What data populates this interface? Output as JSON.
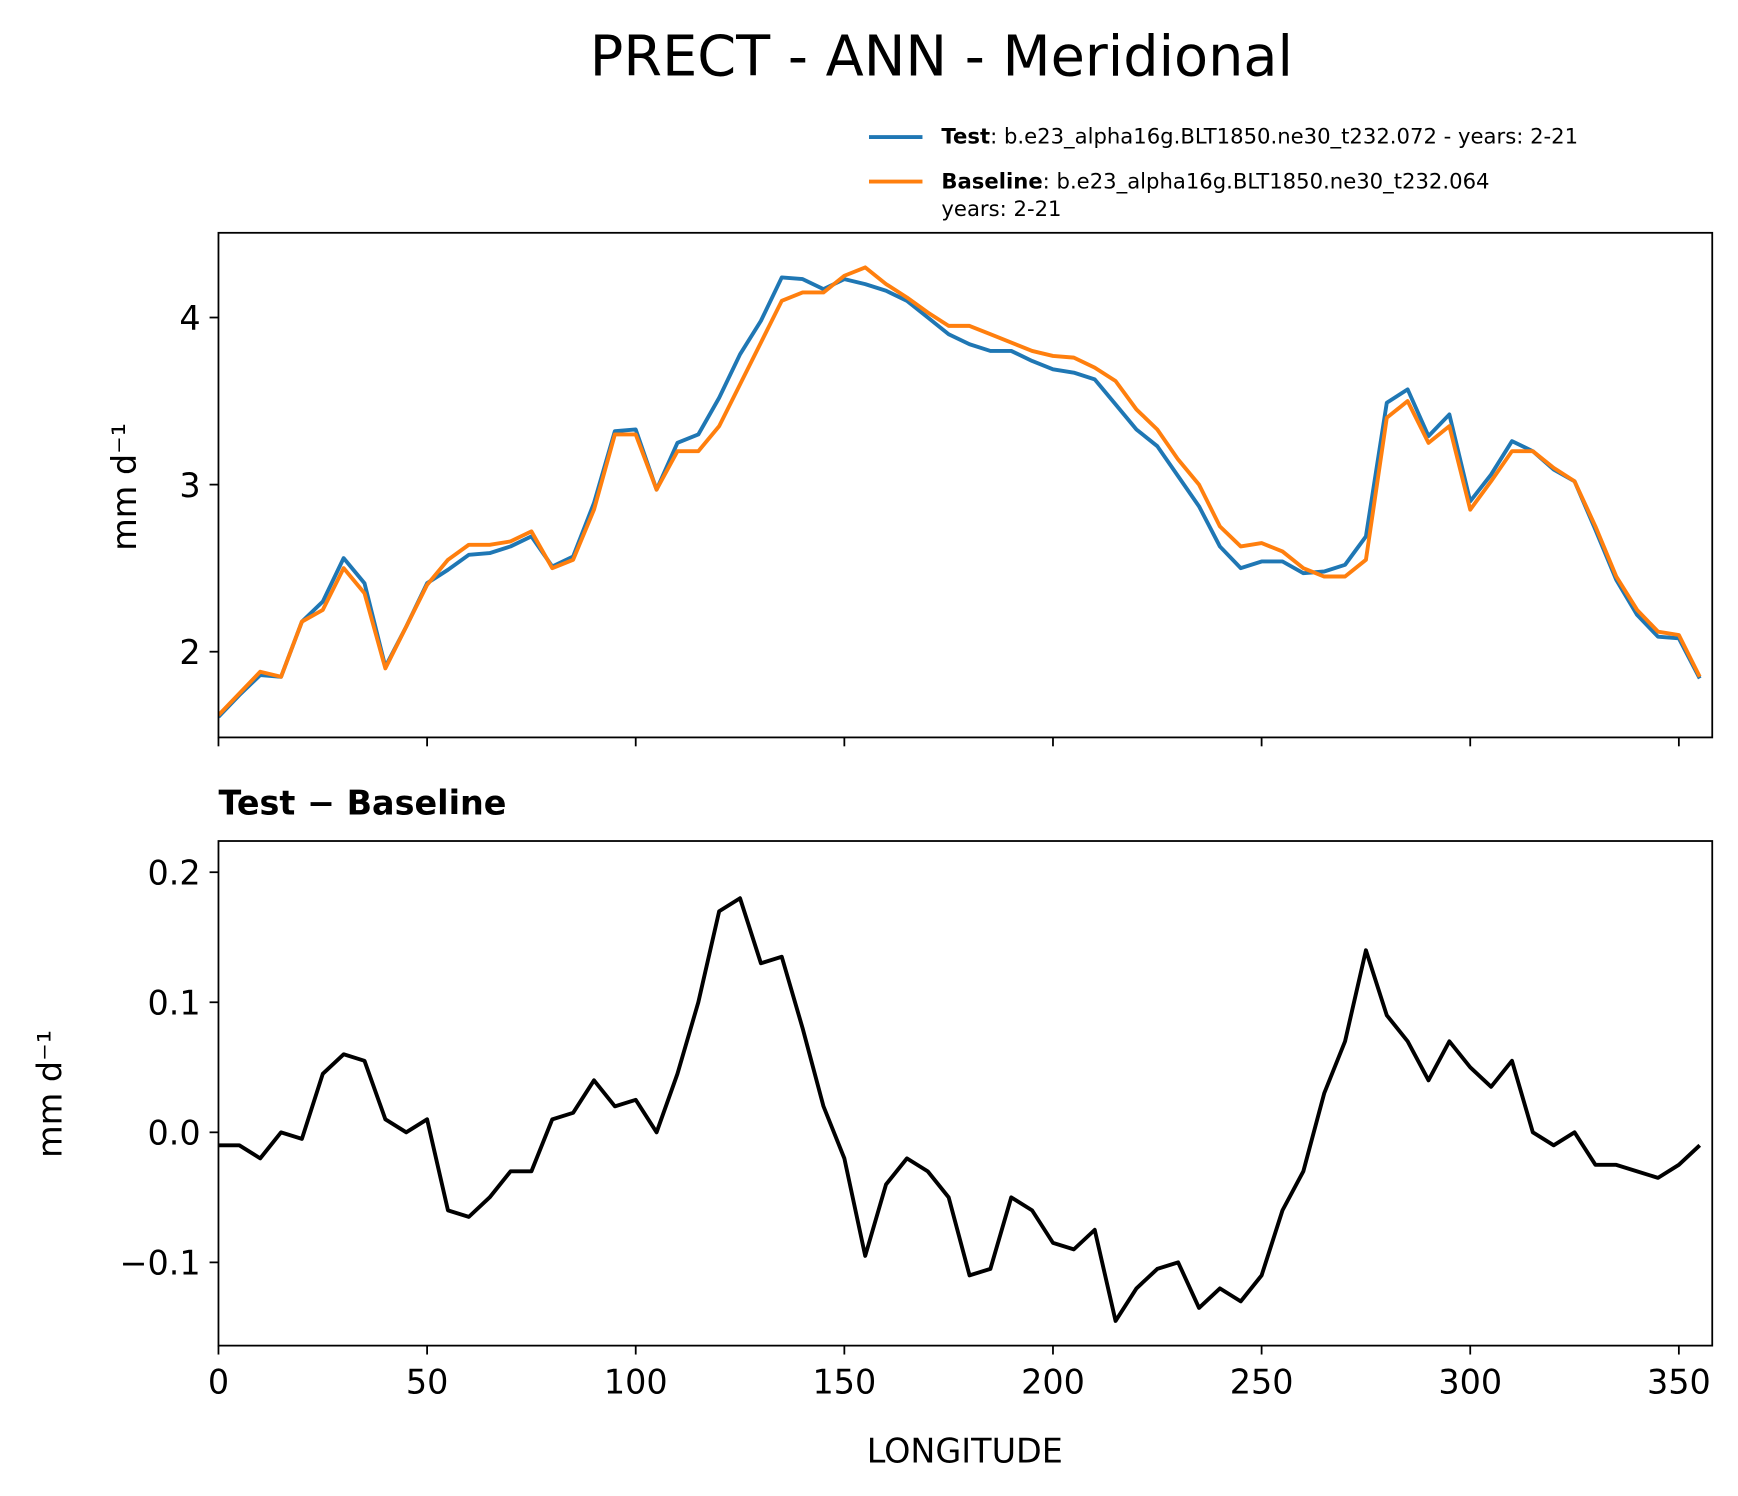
{
  "chart_data": [
    {
      "type": "line",
      "title": "PRECT - ANN - Meridional",
      "ylabel": "mm d⁻¹",
      "x": [
        0,
        5,
        10,
        15,
        20,
        25,
        30,
        35,
        40,
        45,
        50,
        55,
        60,
        65,
        70,
        75,
        80,
        85,
        90,
        95,
        100,
        105,
        110,
        115,
        120,
        125,
        130,
        135,
        140,
        145,
        150,
        155,
        160,
        165,
        170,
        175,
        180,
        185,
        190,
        195,
        200,
        205,
        210,
        215,
        220,
        225,
        230,
        235,
        240,
        245,
        250,
        255,
        260,
        265,
        270,
        275,
        280,
        285,
        290,
        295,
        300,
        305,
        310,
        315,
        320,
        325,
        330,
        335,
        340,
        345,
        350,
        355
      ],
      "series": [
        {
          "name": "Test",
          "description": [
            ": b.e23_alpha16g.BLT1850.ne30_t232.072 - years: 2-21"
          ],
          "color": "#1f77b4",
          "values": [
            1.61,
            1.74,
            1.86,
            1.85,
            2.18,
            2.3,
            2.56,
            2.41,
            1.91,
            2.15,
            2.41,
            2.49,
            2.58,
            2.59,
            2.63,
            2.69,
            2.51,
            2.57,
            2.89,
            3.32,
            3.33,
            2.97,
            3.25,
            3.3,
            3.52,
            3.78,
            3.98,
            4.24,
            4.23,
            4.17,
            4.23,
            4.2,
            4.16,
            4.1,
            4.0,
            3.9,
            3.84,
            3.8,
            3.8,
            3.74,
            3.69,
            3.67,
            3.63,
            3.48,
            3.33,
            3.23,
            3.05,
            2.87,
            2.63,
            2.5,
            2.54,
            2.54,
            2.47,
            2.48,
            2.52,
            2.69,
            3.49,
            3.57,
            3.29,
            3.42,
            2.9,
            3.06,
            3.26,
            3.2,
            3.09,
            3.02,
            2.73,
            2.43,
            2.22,
            2.09,
            2.08,
            1.84
          ]
        },
        {
          "name": "Baseline",
          "description": [
            ": b.e23_alpha16g.BLT1850.ne30_t232.064",
            "years: 2-21"
          ],
          "color": "#ff7f0e",
          "values": [
            1.62,
            1.75,
            1.88,
            1.85,
            2.18,
            2.25,
            2.5,
            2.35,
            1.9,
            2.15,
            2.4,
            2.55,
            2.64,
            2.64,
            2.66,
            2.72,
            2.5,
            2.55,
            2.85,
            3.3,
            3.3,
            2.97,
            3.2,
            3.2,
            3.35,
            3.6,
            3.85,
            4.1,
            4.15,
            4.15,
            4.25,
            4.3,
            4.2,
            4.12,
            4.03,
            3.95,
            3.95,
            3.9,
            3.85,
            3.8,
            3.77,
            3.76,
            3.7,
            3.62,
            3.45,
            3.33,
            3.15,
            3.0,
            2.75,
            2.63,
            2.65,
            2.6,
            2.5,
            2.45,
            2.45,
            2.55,
            3.4,
            3.5,
            3.25,
            3.35,
            2.85,
            3.02,
            3.2,
            3.2,
            3.1,
            3.02,
            2.75,
            2.45,
            2.25,
            2.12,
            2.1,
            1.85
          ]
        }
      ],
      "xlim": [
        0,
        358
      ],
      "xticks": [
        0,
        50,
        100,
        150,
        200,
        250,
        300,
        350
      ],
      "ylim": [
        1.487,
        4.507
      ],
      "yticks": [
        2,
        3,
        4
      ]
    },
    {
      "type": "line",
      "title": "Test − Baseline",
      "ylabel": "mm d⁻¹",
      "xlabel": "LONGITUDE",
      "x": [
        0,
        5,
        10,
        15,
        20,
        25,
        30,
        35,
        40,
        45,
        50,
        55,
        60,
        65,
        70,
        75,
        80,
        85,
        90,
        95,
        100,
        105,
        110,
        115,
        120,
        125,
        130,
        135,
        140,
        145,
        150,
        155,
        160,
        165,
        170,
        175,
        180,
        185,
        190,
        195,
        200,
        205,
        210,
        215,
        220,
        225,
        230,
        235,
        240,
        245,
        250,
        255,
        260,
        265,
        270,
        275,
        280,
        285,
        290,
        295,
        300,
        305,
        310,
        315,
        320,
        325,
        330,
        335,
        340,
        345,
        350,
        355
      ],
      "series": [
        {
          "color": "#000000",
          "values": [
            -0.01,
            -0.01,
            -0.02,
            0.0,
            -0.005,
            0.045,
            0.06,
            0.055,
            0.01,
            0.0,
            0.01,
            -0.06,
            -0.065,
            -0.05,
            -0.03,
            -0.03,
            0.01,
            0.015,
            0.04,
            0.02,
            0.025,
            0.0,
            0.045,
            0.1,
            0.17,
            0.18,
            0.13,
            0.135,
            0.08,
            0.02,
            -0.02,
            -0.095,
            -0.04,
            -0.02,
            -0.03,
            -0.05,
            -0.11,
            -0.105,
            -0.05,
            -0.06,
            -0.085,
            -0.09,
            -0.075,
            -0.145,
            -0.12,
            -0.105,
            -0.1,
            -0.135,
            -0.12,
            -0.13,
            -0.11,
            -0.06,
            -0.03,
            0.03,
            0.07,
            0.14,
            0.09,
            0.07,
            0.04,
            0.07,
            0.05,
            0.035,
            0.055,
            0.0,
            -0.01,
            0.0,
            -0.025,
            -0.025,
            -0.03,
            -0.035,
            -0.025,
            -0.01
          ]
        }
      ],
      "xlim": [
        0,
        358
      ],
      "xticks": [
        0,
        50,
        100,
        150,
        200,
        250,
        300,
        350
      ],
      "ylim": [
        -0.164,
        0.224
      ],
      "yticks": [
        {
          "value": -0.1,
          "label": "−0.1"
        },
        {
          "value": 0.0,
          "label": "0.0"
        },
        0.1,
        0.2
      ]
    }
  ]
}
